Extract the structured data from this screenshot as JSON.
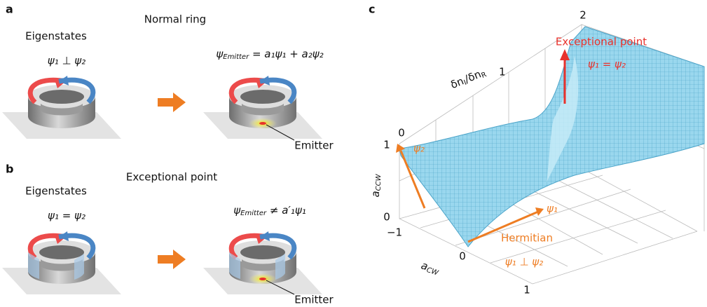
{
  "panel_a": {
    "label": "a",
    "title": "Normal ring",
    "eigenstates": "Eigenstates",
    "relation": "ψ₁ ⊥ ψ₂",
    "formula": {
      "symbol": "ψ",
      "subscript": "Emitter",
      "rest": " = a₁ψ₁ + a₂ψ₂"
    },
    "emitter": "Emitter"
  },
  "panel_b": {
    "label": "b",
    "title": "Exceptional point",
    "eigenstates": "Eigenstates",
    "relation": "ψ₁ = ψ₂",
    "formula": {
      "symbol": "ψ",
      "subscript": "Emitter",
      "rest": " ≠ a′₁ψ₁"
    },
    "emitter": "Emitter"
  },
  "panel_c": {
    "label": "c",
    "annotation": "Exceptional point",
    "ep_relation": "ψ₁ = ψ₂",
    "depth_axis_label": {
      "a": "δn",
      "b": "I",
      "c": "/δn",
      "d": "R"
    },
    "depth_ticks": [
      "1",
      "2"
    ],
    "corner_zero": "0",
    "z_axis_label": {
      "symbol": "a",
      "subscript": "CCW"
    },
    "z_ticks": [
      "1",
      "0"
    ],
    "x_axis_label": {
      "symbol": "a",
      "subscript": "CW"
    },
    "x_ticks": [
      "−1",
      "0",
      "1"
    ],
    "psi2": "ψ₂",
    "psi1": "ψ₁",
    "hermitian": "Hermitian",
    "hermitian_relation": "ψ₁ ⊥ ψ₂"
  }
}
